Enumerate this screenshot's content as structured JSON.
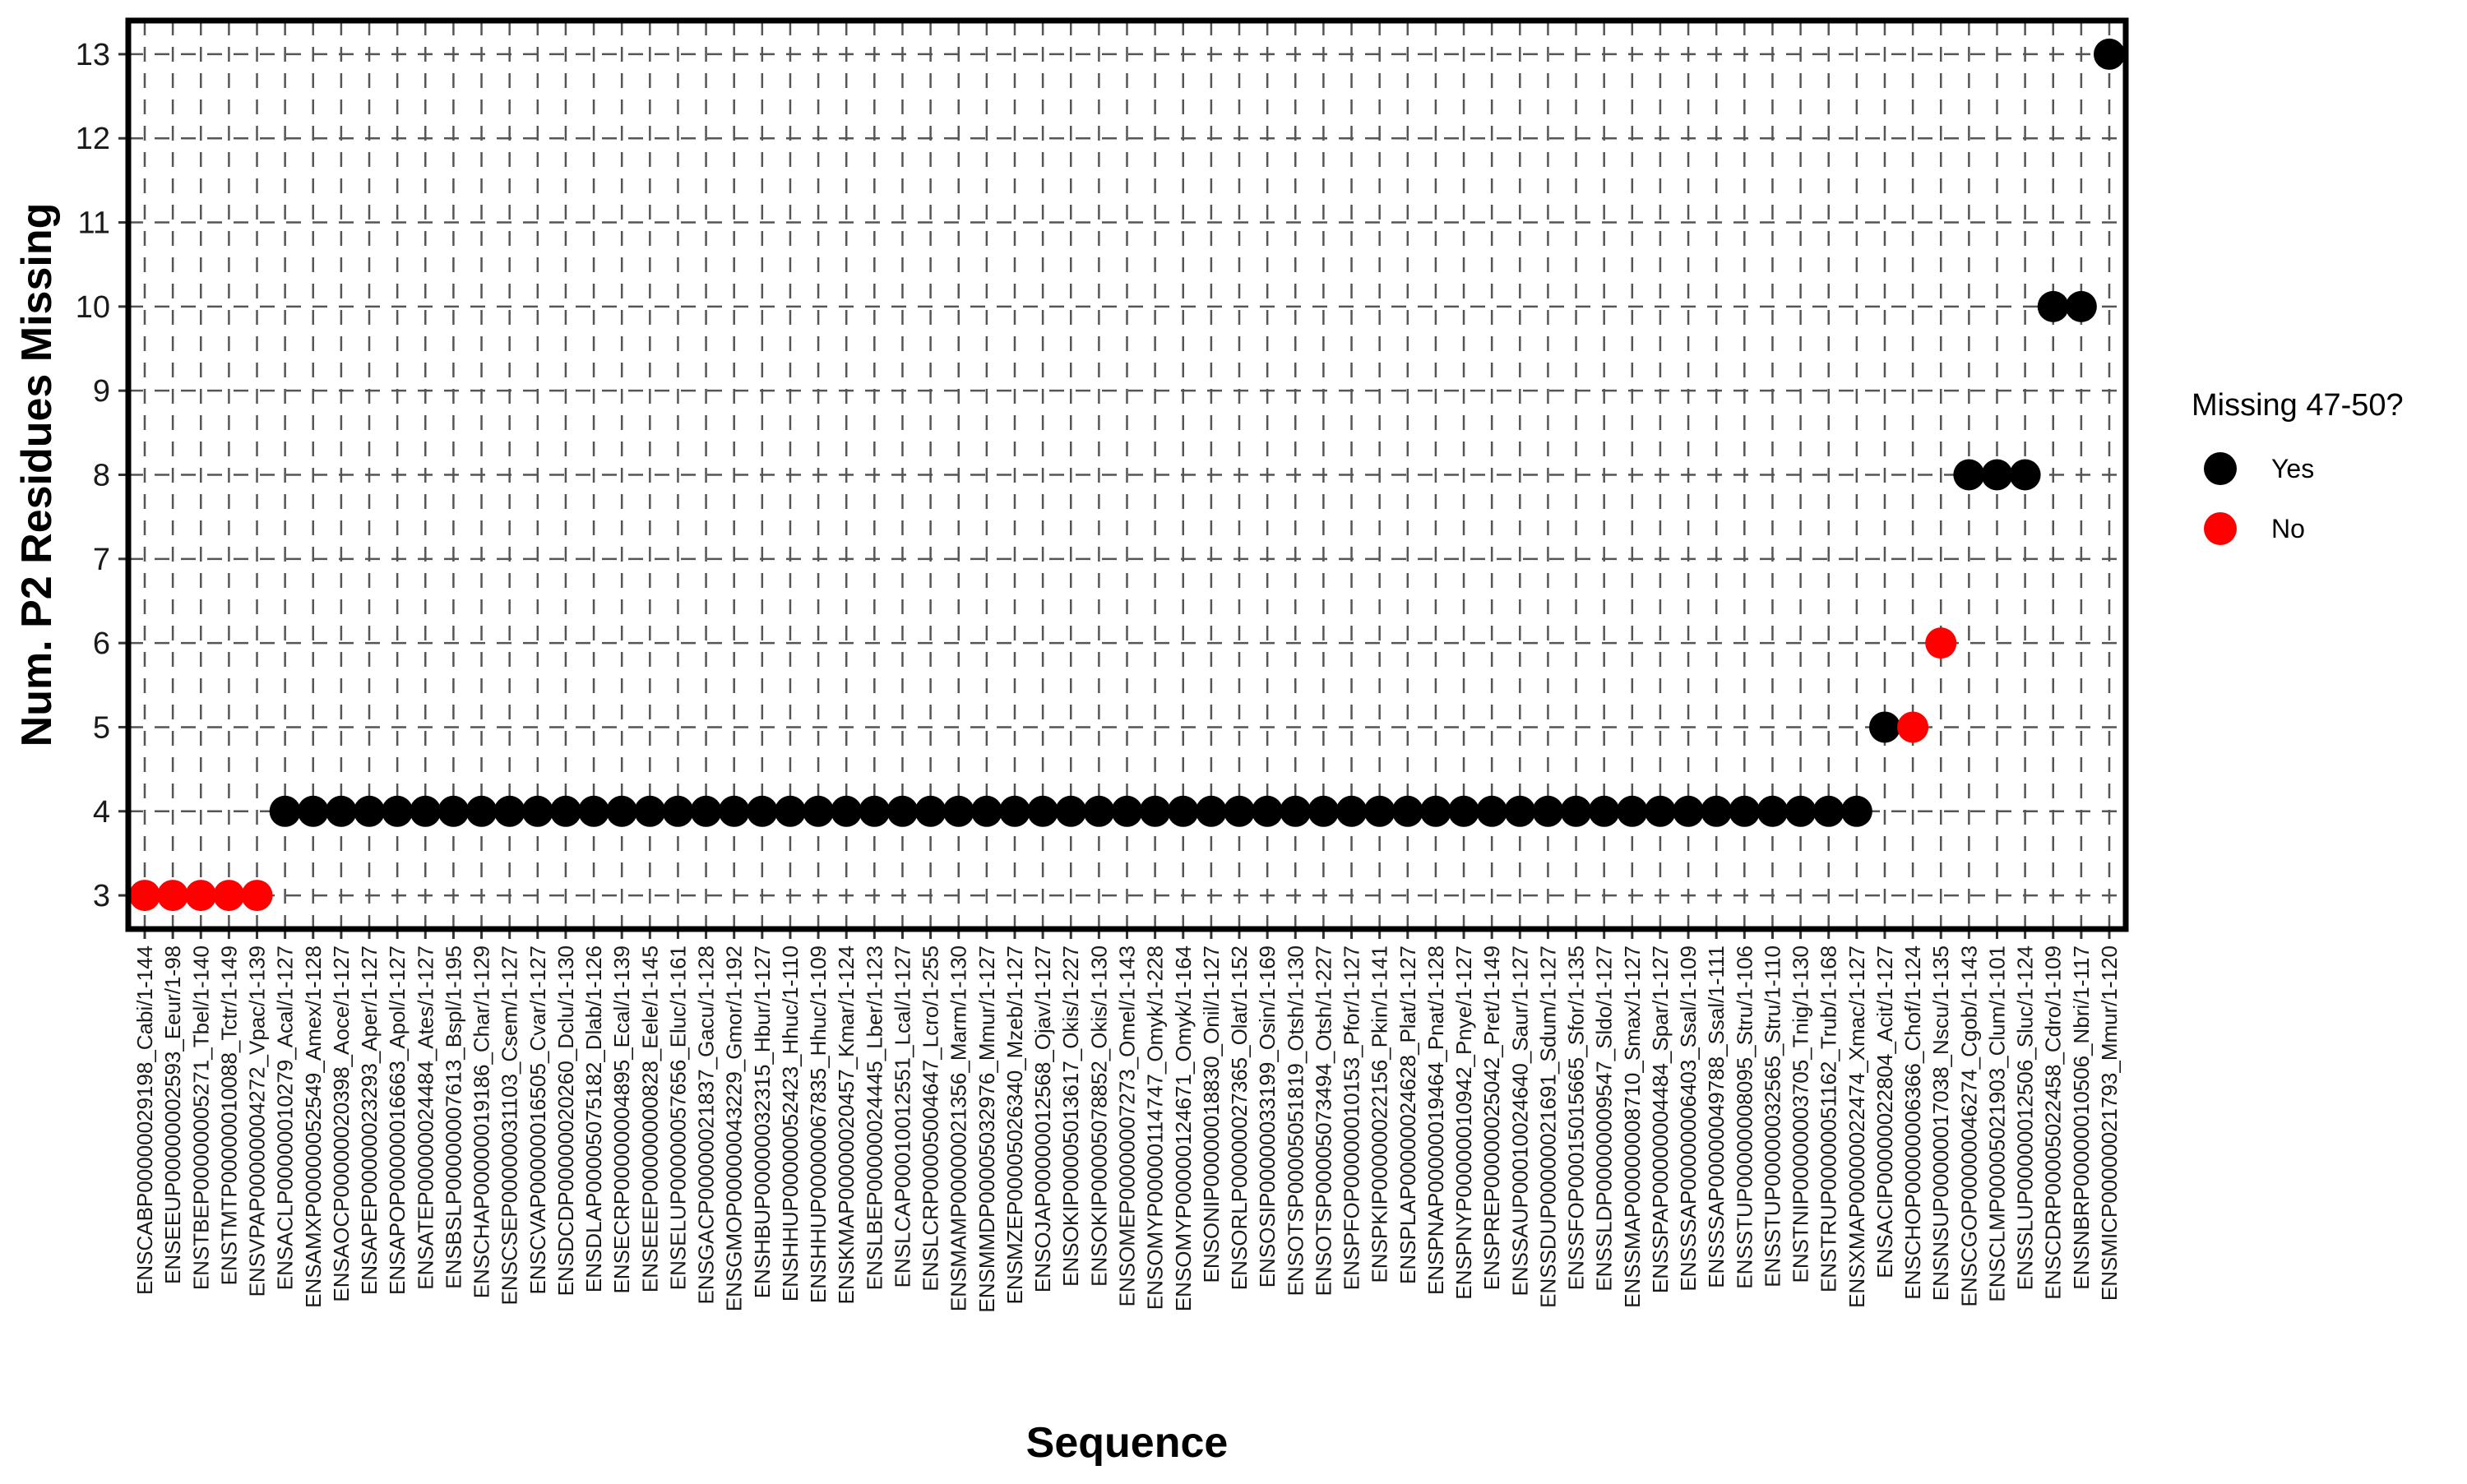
{
  "chart_data": {
    "type": "scatter",
    "xlabel": "Sequence",
    "ylabel": "Num. P2 Residues Missing",
    "ylim": [
      2.6,
      13.4
    ],
    "yticks": [
      3,
      4,
      5,
      6,
      7,
      8,
      9,
      10,
      11,
      12,
      13
    ],
    "grid": "dashed",
    "legend": {
      "title": "Missing 47-50?",
      "placement": "right",
      "entries": [
        {
          "label": "Yes",
          "color": "#000000"
        },
        {
          "label": "No",
          "color": "#ff0000"
        }
      ]
    },
    "categories": [
      "ENSCABP00000029198_Cabi/1-144",
      "ENSEEUP00000002593_Eeur/1-98",
      "ENSTBEP00000005271_Tbel/1-140",
      "ENSTMTP00000010088_Tctr/1-149",
      "ENSVPAP00000004272_Vpac/1-139",
      "ENSACLP00000010279_Acal/1-127",
      "ENSAMXP00000052549_Amex/1-128",
      "ENSAOCP00000020398_Aoce/1-127",
      "ENSAPEP00000023293_Aper/1-127",
      "ENSAPOP00000016663_Apol/1-127",
      "ENSATEP00000024484_Ates/1-127",
      "ENSBSLP00000007613_Bspl/1-195",
      "ENSCHAP00000019186_Char/1-129",
      "ENSCSEP00000031103_Csem/1-127",
      "ENSCVAP00000016505_Cvar/1-127",
      "ENSDCDP00000020260_Dclu/1-130",
      "ENSDLAP00005075182_Dlab/1-126",
      "ENSECRP00000004895_Ecal/1-139",
      "ENSEEEP00000000828_Eele/1-145",
      "ENSELUP00000057656_Eluc/1-161",
      "ENSGACP00000021837_Gacu/1-128",
      "ENSGMOP00000043229_Gmor/1-192",
      "ENSHBUP00000032315_Hbur/1-127",
      "ENSHHUP00000052423_Hhuc/1-110",
      "ENSHHUP00000067835_Hhuc/1-109",
      "ENSKMAP00000020457_Kmar/1-124",
      "ENSLBEP00000024445_Lber/1-123",
      "ENSLCAP00010012551_Lcal/1-127",
      "ENSLCRP00005004647_Lcro/1-255",
      "ENSMAMP00000021356_Marm/1-130",
      "ENSMMDP00005032976_Mmur/1-127",
      "ENSMZEP00005026340_Mzeb/1-127",
      "ENSOJAP00000012568_Ojav/1-127",
      "ENSOKIP00005013617_Okis/1-227",
      "ENSOKIP00005078852_Okis/1-130",
      "ENSOMEP00000007273_Omel/1-143",
      "ENSOMYP00000114747_Omyk/1-228",
      "ENSOMYP00000124671_Omyk/1-164",
      "ENSONIP00000018830_Onil/1-127",
      "ENSORLP00000027365_Olat/1-152",
      "ENSOSIP00000033199_Osin/1-169",
      "ENSOTSP00005051819_Otsh/1-130",
      "ENSOTSP00005073494_Otsh/1-227",
      "ENSPFOP00000010153_Pfor/1-127",
      "ENSPKIP00000022156_Pkin/1-141",
      "ENSPLAP00000024628_Plat/1-127",
      "ENSPNAP00000019464_Pnat/1-128",
      "ENSPNYP00000010942_Pnye/1-127",
      "ENSPREP00000025042_Pret/1-149",
      "ENSSAUP00010024640_Saur/1-127",
      "ENSSDUP00000021691_Sdum/1-127",
      "ENSSFOP00015015665_Sfor/1-135",
      "ENSSLDP00000009547_Sldo/1-127",
      "ENSSMAP00000008710_Smax/1-127",
      "ENSSPAP00000004484_Spar/1-127",
      "ENSSSAP00000006403_Ssal/1-109",
      "ENSSSAP00000049788_Ssal/1-111",
      "ENSSTUP00000008095_Stru/1-106",
      "ENSSTUP00000032565_Stru/1-110",
      "ENSTNIP00000003705_Tnig/1-130",
      "ENSTRUP00000051162_Trub/1-168",
      "ENSXMAP00000022474_Xmac/1-127",
      "ENSACIP00000022804_Acit/1-127",
      "ENSCHOP00000006366_Chof/1-124",
      "ENSNSUP00000017038_Nscu/1-135",
      "ENSCGOP00000046274_Cgob/1-143",
      "ENSCLMP00005021903_Clum/1-101",
      "ENSSLUP00000012506_Sluc/1-124",
      "ENSCDRP00005022458_Cdro/1-109",
      "ENSNBRP00000010506_Nbri/1-117",
      "ENSMICP00000021793_Mmur/1-120"
    ],
    "series": [
      {
        "name": "Yes",
        "color": "#000000",
        "points": [
          {
            "x": "ENSACLP00000010279_Acal/1-127",
            "y": 4
          },
          {
            "x": "ENSAMXP00000052549_Amex/1-128",
            "y": 4
          },
          {
            "x": "ENSAOCP00000020398_Aoce/1-127",
            "y": 4
          },
          {
            "x": "ENSAPEP00000023293_Aper/1-127",
            "y": 4
          },
          {
            "x": "ENSAPOP00000016663_Apol/1-127",
            "y": 4
          },
          {
            "x": "ENSATEP00000024484_Ates/1-127",
            "y": 4
          },
          {
            "x": "ENSBSLP00000007613_Bspl/1-195",
            "y": 4
          },
          {
            "x": "ENSCHAP00000019186_Char/1-129",
            "y": 4
          },
          {
            "x": "ENSCSEP00000031103_Csem/1-127",
            "y": 4
          },
          {
            "x": "ENSCVAP00000016505_Cvar/1-127",
            "y": 4
          },
          {
            "x": "ENSDCDP00000020260_Dclu/1-130",
            "y": 4
          },
          {
            "x": "ENSDLAP00005075182_Dlab/1-126",
            "y": 4
          },
          {
            "x": "ENSECRP00000004895_Ecal/1-139",
            "y": 4
          },
          {
            "x": "ENSEEEP00000000828_Eele/1-145",
            "y": 4
          },
          {
            "x": "ENSELUP00000057656_Eluc/1-161",
            "y": 4
          },
          {
            "x": "ENSGACP00000021837_Gacu/1-128",
            "y": 4
          },
          {
            "x": "ENSGMOP00000043229_Gmor/1-192",
            "y": 4
          },
          {
            "x": "ENSHBUP00000032315_Hbur/1-127",
            "y": 4
          },
          {
            "x": "ENSHHUP00000052423_Hhuc/1-110",
            "y": 4
          },
          {
            "x": "ENSHHUP00000067835_Hhuc/1-109",
            "y": 4
          },
          {
            "x": "ENSKMAP00000020457_Kmar/1-124",
            "y": 4
          },
          {
            "x": "ENSLBEP00000024445_Lber/1-123",
            "y": 4
          },
          {
            "x": "ENSLCAP00010012551_Lcal/1-127",
            "y": 4
          },
          {
            "x": "ENSLCRP00005004647_Lcro/1-255",
            "y": 4
          },
          {
            "x": "ENSMAMP00000021356_Marm/1-130",
            "y": 4
          },
          {
            "x": "ENSMMDP00005032976_Mmur/1-127",
            "y": 4
          },
          {
            "x": "ENSMZEP00005026340_Mzeb/1-127",
            "y": 4
          },
          {
            "x": "ENSOJAP00000012568_Ojav/1-127",
            "y": 4
          },
          {
            "x": "ENSOKIP00005013617_Okis/1-227",
            "y": 4
          },
          {
            "x": "ENSOKIP00005078852_Okis/1-130",
            "y": 4
          },
          {
            "x": "ENSOMEP00000007273_Omel/1-143",
            "y": 4
          },
          {
            "x": "ENSOMYP00000114747_Omyk/1-228",
            "y": 4
          },
          {
            "x": "ENSOMYP00000124671_Omyk/1-164",
            "y": 4
          },
          {
            "x": "ENSONIP00000018830_Onil/1-127",
            "y": 4
          },
          {
            "x": "ENSORLP00000027365_Olat/1-152",
            "y": 4
          },
          {
            "x": "ENSOSIP00000033199_Osin/1-169",
            "y": 4
          },
          {
            "x": "ENSOTSP00005051819_Otsh/1-130",
            "y": 4
          },
          {
            "x": "ENSOTSP00005073494_Otsh/1-227",
            "y": 4
          },
          {
            "x": "ENSPFOP00000010153_Pfor/1-127",
            "y": 4
          },
          {
            "x": "ENSPKIP00000022156_Pkin/1-141",
            "y": 4
          },
          {
            "x": "ENSPLAP00000024628_Plat/1-127",
            "y": 4
          },
          {
            "x": "ENSPNAP00000019464_Pnat/1-128",
            "y": 4
          },
          {
            "x": "ENSPNYP00000010942_Pnye/1-127",
            "y": 4
          },
          {
            "x": "ENSPREP00000025042_Pret/1-149",
            "y": 4
          },
          {
            "x": "ENSSAUP00010024640_Saur/1-127",
            "y": 4
          },
          {
            "x": "ENSSDUP00000021691_Sdum/1-127",
            "y": 4
          },
          {
            "x": "ENSSFOP00015015665_Sfor/1-135",
            "y": 4
          },
          {
            "x": "ENSSLDP00000009547_Sldo/1-127",
            "y": 4
          },
          {
            "x": "ENSSMAP00000008710_Smax/1-127",
            "y": 4
          },
          {
            "x": "ENSSPAP00000004484_Spar/1-127",
            "y": 4
          },
          {
            "x": "ENSSSAP00000006403_Ssal/1-109",
            "y": 4
          },
          {
            "x": "ENSSSAP00000049788_Ssal/1-111",
            "y": 4
          },
          {
            "x": "ENSSTUP00000008095_Stru/1-106",
            "y": 4
          },
          {
            "x": "ENSSTUP00000032565_Stru/1-110",
            "y": 4
          },
          {
            "x": "ENSTNIP00000003705_Tnig/1-130",
            "y": 4
          },
          {
            "x": "ENSTRUP00000051162_Trub/1-168",
            "y": 4
          },
          {
            "x": "ENSXMAP00000022474_Xmac/1-127",
            "y": 4
          },
          {
            "x": "ENSACIP00000022804_Acit/1-127",
            "y": 5
          },
          {
            "x": "ENSCGOP00000046274_Cgob/1-143",
            "y": 8
          },
          {
            "x": "ENSCLMP00005021903_Clum/1-101",
            "y": 8
          },
          {
            "x": "ENSSLUP00000012506_Sluc/1-124",
            "y": 8
          },
          {
            "x": "ENSCDRP00005022458_Cdro/1-109",
            "y": 10
          },
          {
            "x": "ENSNBRP00000010506_Nbri/1-117",
            "y": 10
          },
          {
            "x": "ENSMICP00000021793_Mmur/1-120",
            "y": 13
          }
        ]
      },
      {
        "name": "No",
        "color": "#ff0000",
        "points": [
          {
            "x": "ENSCABP00000029198_Cabi/1-144",
            "y": 3
          },
          {
            "x": "ENSEEUP00000002593_Eeur/1-98",
            "y": 3
          },
          {
            "x": "ENSTBEP00000005271_Tbel/1-140",
            "y": 3
          },
          {
            "x": "ENSTMTP00000010088_Tctr/1-149",
            "y": 3
          },
          {
            "x": "ENSVPAP00000004272_Vpac/1-139",
            "y": 3
          },
          {
            "x": "ENSCHOP00000006366_Chof/1-124",
            "y": 5
          },
          {
            "x": "ENSNSUP00000017038_Nscu/1-135",
            "y": 6
          }
        ]
      }
    ]
  }
}
